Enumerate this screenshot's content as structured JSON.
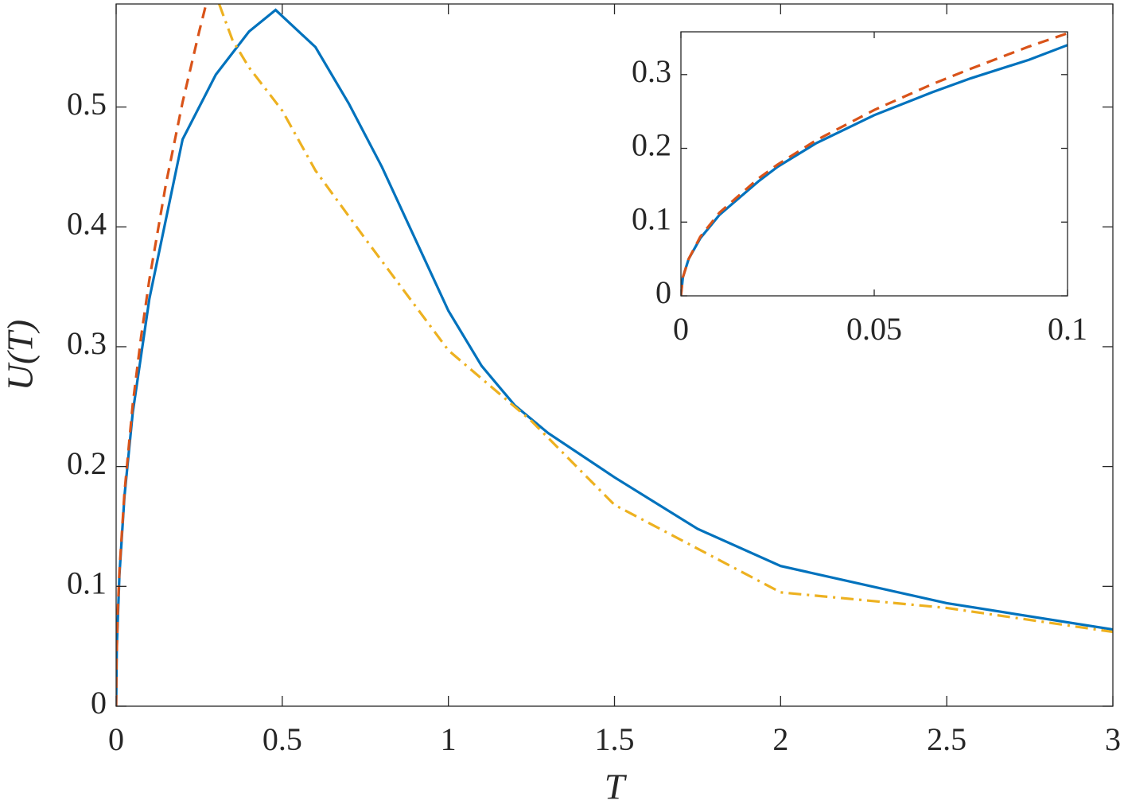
{
  "chart_data": [
    {
      "type": "line",
      "xlabel": "T",
      "ylabel": "U(T)",
      "xlim": [
        0,
        3
      ],
      "ylim": [
        0,
        0.586
      ],
      "xticks": [
        0,
        0.5,
        1,
        1.5,
        2,
        2.5,
        3
      ],
      "yticks": [
        0,
        0.1,
        0.2,
        0.3,
        0.4,
        0.5
      ],
      "box": true,
      "series": [
        {
          "color": "#0072bd",
          "style": "solid",
          "x": [
            0,
            0.002,
            0.01,
            0.025,
            0.05,
            0.1,
            0.2,
            0.3,
            0.4,
            0.48,
            0.6,
            0.7,
            0.8,
            0.9,
            1.0,
            1.1,
            1.2,
            1.3,
            1.5,
            1.75,
            2.0,
            2.5,
            3.0
          ],
          "values": [
            0,
            0.05,
            0.11,
            0.175,
            0.245,
            0.34,
            0.473,
            0.527,
            0.563,
            0.581,
            0.55,
            0.503,
            0.45,
            0.39,
            0.33,
            0.284,
            0.251,
            0.228,
            0.191,
            0.148,
            0.117,
            0.086,
            0.064
          ]
        },
        {
          "color": "#d95319",
          "style": "dashed",
          "x": [
            0,
            0.001,
            0.005,
            0.01,
            0.025,
            0.05,
            0.075,
            0.1,
            0.15,
            0.2,
            0.25,
            0.27
          ],
          "values": [
            0,
            0.036,
            0.08,
            0.113,
            0.178,
            0.252,
            0.308,
            0.356,
            0.436,
            0.504,
            0.563,
            0.585
          ]
        },
        {
          "color": "#edb120",
          "style": "dashdot",
          "x": [
            0.31,
            0.35,
            0.4,
            0.5,
            0.6,
            0.75,
            1.0,
            1.25,
            1.5,
            2.0,
            2.5,
            3.0
          ],
          "values": [
            0.586,
            0.556,
            0.533,
            0.497,
            0.447,
            0.39,
            0.297,
            0.238,
            0.168,
            0.095,
            0.082,
            0.062
          ]
        }
      ]
    },
    {
      "type": "line",
      "xlim": [
        0,
        0.1
      ],
      "ylim": [
        0,
        0.358
      ],
      "xticks": [
        0,
        0.05,
        0.1
      ],
      "yticks": [
        0,
        0.1,
        0.2,
        0.3
      ],
      "box": true,
      "series": [
        {
          "color": "#0072bd",
          "style": "solid",
          "x": [
            0,
            0.0005,
            0.002,
            0.005,
            0.01,
            0.02,
            0.025,
            0.035,
            0.05,
            0.065,
            0.075,
            0.09,
            0.1
          ],
          "values": [
            0,
            0.025,
            0.05,
            0.078,
            0.11,
            0.155,
            0.175,
            0.207,
            0.245,
            0.276,
            0.295,
            0.32,
            0.34
          ]
        },
        {
          "color": "#d95319",
          "style": "dashed",
          "x": [
            0,
            0.0005,
            0.002,
            0.005,
            0.01,
            0.02,
            0.025,
            0.035,
            0.05,
            0.065,
            0.075,
            0.09,
            0.1
          ],
          "values": [
            0,
            0.025,
            0.05,
            0.08,
            0.113,
            0.159,
            0.178,
            0.211,
            0.252,
            0.287,
            0.308,
            0.338,
            0.356
          ]
        }
      ]
    }
  ]
}
